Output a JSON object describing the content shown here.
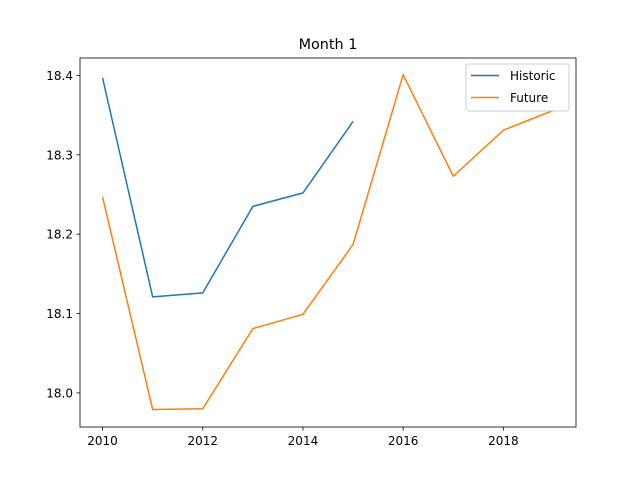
{
  "chart_data": {
    "type": "line",
    "title": "Month 1",
    "xlabel": "",
    "ylabel": "",
    "xlim": [
      2009.55,
      2019.45
    ],
    "ylim": [
      17.957,
      18.422
    ],
    "xticks": [
      2010,
      2012,
      2014,
      2016,
      2018
    ],
    "yticks": [
      18.0,
      18.1,
      18.2,
      18.3,
      18.4
    ],
    "xtick_labels": [
      "2010",
      "2012",
      "2014",
      "2016",
      "2018"
    ],
    "ytick_labels": [
      "18.0",
      "18.1",
      "18.2",
      "18.3",
      "18.4"
    ],
    "legend_position": "top-right",
    "grid": false,
    "series": [
      {
        "name": "Historic",
        "color": "#1f77b4",
        "x": [
          2010,
          2011,
          2012,
          2013,
          2014,
          2015
        ],
        "y": [
          18.397,
          18.121,
          18.126,
          18.235,
          18.252,
          18.342
        ]
      },
      {
        "name": "Future",
        "color": "#ff7f0e",
        "x": [
          2010,
          2011,
          2012,
          2013,
          2014,
          2015,
          2016,
          2017,
          2018,
          2019
        ],
        "y": [
          18.247,
          17.979,
          17.98,
          18.081,
          18.099,
          18.187,
          18.401,
          18.273,
          18.331,
          18.356
        ]
      }
    ]
  }
}
